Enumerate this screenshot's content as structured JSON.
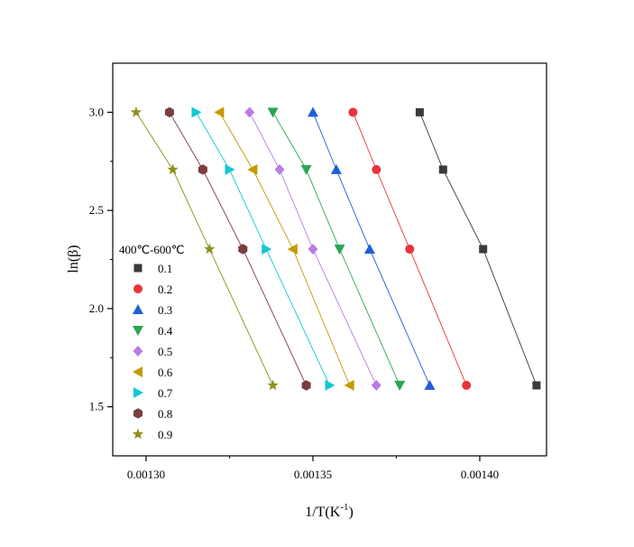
{
  "chart_data": {
    "type": "scatter",
    "xlabel": "1/T(K",
    "xlabel_sup": "-1",
    "xlabel_suffix": ")",
    "ylabel": "ln(β)",
    "xlim": [
      0.00129,
      0.00142
    ],
    "ylim": [
      1.25,
      3.25
    ],
    "xticks": [
      0.0013,
      0.00135,
      0.0014
    ],
    "xtick_labels": [
      "0.00130",
      "0.00135",
      "0.00140"
    ],
    "yticks": [
      1.5,
      2.0,
      2.5,
      3.0
    ],
    "ytick_labels": [
      "1.5",
      "2.0",
      "2.5",
      "3.0"
    ],
    "y_values": [
      3.0,
      2.708,
      2.303,
      1.609
    ],
    "legend_title": "400℃-600℃",
    "legend_position": "left-center",
    "grid": false,
    "fit_lines": true,
    "series": [
      {
        "name": "0.1",
        "marker": "square",
        "color": "#3a3a3a",
        "x": [
          0.001382,
          0.001389,
          0.001401,
          0.001417
        ]
      },
      {
        "name": "0.2",
        "marker": "circle",
        "color": "#e8333b",
        "x": [
          0.001362,
          0.001369,
          0.001379,
          0.001396
        ]
      },
      {
        "name": "0.3",
        "marker": "triangle-up",
        "color": "#1f5fd6",
        "x": [
          0.00135,
          0.001357,
          0.001367,
          0.001385
        ]
      },
      {
        "name": "0.4",
        "marker": "triangle-down",
        "color": "#2aa653",
        "x": [
          0.001338,
          0.001348,
          0.001358,
          0.001376
        ]
      },
      {
        "name": "0.5",
        "marker": "diamond",
        "color": "#b77ce6",
        "x": [
          0.001331,
          0.00134,
          0.00135,
          0.001369
        ]
      },
      {
        "name": "0.6",
        "marker": "triangle-left",
        "color": "#c49a00",
        "x": [
          0.001322,
          0.001332,
          0.001344,
          0.001361
        ]
      },
      {
        "name": "0.7",
        "marker": "triangle-right",
        "color": "#12c7d6",
        "x": [
          0.001315,
          0.001325,
          0.001336,
          0.001355
        ]
      },
      {
        "name": "0.8",
        "marker": "hexagon",
        "color": "#7b3e3e",
        "x": [
          0.001307,
          0.001317,
          0.001329,
          0.001348
        ]
      },
      {
        "name": "0.9",
        "marker": "star",
        "color": "#8f8f1a",
        "x": [
          0.001297,
          0.001308,
          0.001319,
          0.001338
        ]
      }
    ]
  }
}
